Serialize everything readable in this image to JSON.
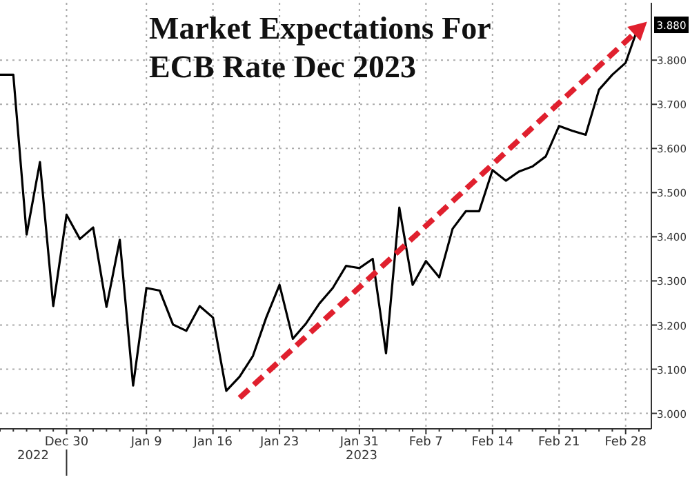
{
  "chart_data": {
    "type": "line",
    "title": "Market Expectations For\nECB Rate Dec 2023",
    "categories": [
      null,
      null,
      null,
      null,
      null,
      "Dec 30",
      null,
      null,
      null,
      null,
      null,
      "Jan 9",
      null,
      null,
      null,
      null,
      "Jan 16",
      null,
      null,
      null,
      null,
      "Jan 23",
      null,
      null,
      null,
      null,
      null,
      "Jan 31",
      null,
      null,
      null,
      null,
      "Feb 7",
      null,
      null,
      null,
      null,
      "Feb 14",
      null,
      null,
      null,
      null,
      "Feb 21",
      null,
      null,
      null,
      null,
      "Feb 28",
      null
    ],
    "series": [
      {
        "color": "#000000",
        "line_style": "solid",
        "values": [
          3.767,
          3.767,
          3.405,
          3.569,
          3.243,
          3.45,
          3.395,
          3.421,
          3.241,
          3.393,
          3.063,
          3.284,
          3.278,
          3.201,
          3.187,
          3.243,
          3.217,
          3.051,
          3.083,
          3.13,
          3.217,
          3.291,
          3.169,
          3.204,
          3.249,
          3.284,
          3.334,
          3.329,
          3.35,
          3.136,
          3.466,
          3.291,
          3.345,
          3.308,
          3.418,
          3.458,
          3.458,
          3.551,
          3.527,
          3.548,
          3.559,
          3.582,
          3.651,
          3.64,
          3.631,
          3.733,
          3.767,
          3.794,
          3.88
        ],
        "value_labels": [
          null,
          null,
          null,
          null,
          null,
          null,
          null,
          null,
          null,
          null,
          null,
          null,
          null,
          null,
          null,
          null,
          null,
          null,
          null,
          null,
          null,
          null,
          null,
          null,
          null,
          null,
          null,
          null,
          null,
          null,
          null,
          null,
          null,
          null,
          null,
          null,
          null,
          null,
          null,
          null,
          null,
          null,
          null,
          null,
          null,
          null,
          null,
          null,
          "3.880"
        ]
      },
      {
        "color": "#e0202e",
        "line_style": "dashed",
        "values": [
          null,
          null,
          null,
          null,
          null,
          null,
          null,
          null,
          null,
          null,
          null,
          null,
          null,
          null,
          null,
          null,
          null,
          null,
          3.035,
          null,
          null,
          null,
          null,
          null,
          null,
          null,
          null,
          null,
          null,
          null,
          null,
          null,
          null,
          null,
          null,
          null,
          null,
          null,
          null,
          null,
          null,
          null,
          null,
          null,
          null,
          null,
          null,
          null,
          3.87
        ]
      }
    ],
    "ylim": [
      2.965,
      3.93
    ],
    "yticks": [
      {
        "value": 3.0,
        "label": "3.000"
      },
      {
        "value": 3.1,
        "label": "3.100"
      },
      {
        "value": 3.2,
        "label": "3.200"
      },
      {
        "value": 3.3,
        "label": "3.300"
      },
      {
        "value": 3.4,
        "label": "3.400"
      },
      {
        "value": 3.5,
        "label": "3.500"
      },
      {
        "value": 3.6,
        "label": "3.600"
      },
      {
        "value": 3.7,
        "label": "3.700"
      },
      {
        "value": 3.8,
        "label": "3.800"
      }
    ],
    "grid": true,
    "annotations": [
      "2022",
      "2023"
    ]
  }
}
